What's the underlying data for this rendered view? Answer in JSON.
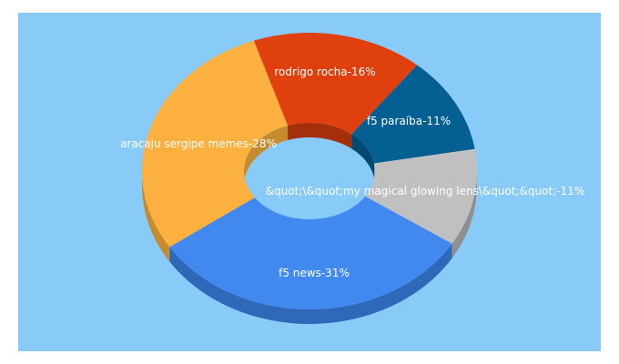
{
  "chart_data": {
    "type": "pie",
    "style": "3d-donut",
    "background": "#88cbf8",
    "slices": [
      {
        "label": "f5 news-31%",
        "value": 31,
        "color": "#4189ef",
        "side_color": "#2f68b8"
      },
      {
        "label": "aracaju sergipe memes-28%",
        "value": 28,
        "color": "#fbb03f",
        "side_color": "#c68a2f"
      },
      {
        "label": "rodrigo rocha-16%",
        "value": 16,
        "color": "#e0400e",
        "side_color": "#a52f0a"
      },
      {
        "label": "f5 paraíba-11%",
        "value": 11,
        "color": "#055f93",
        "side_color": "#04476f"
      },
      {
        "label": "&quot;\\&quot;my magical glowing lens\\&quot;&quot;-11%",
        "value": 11,
        "color": "#c0c0c0",
        "side_color": "#8f8f8f"
      }
    ]
  }
}
